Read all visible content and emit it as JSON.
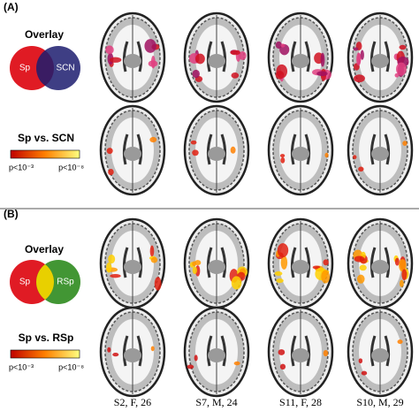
{
  "panels": [
    {
      "label": "(A)",
      "overlay_title": "Overlay",
      "venn": [
        "Sp",
        "SCN"
      ],
      "contrast": "Sp vs. SCN",
      "colorbar": [
        "p<10⁻³",
        "p<10⁻⁸"
      ]
    },
    {
      "label": "(B)",
      "overlay_title": "Overlay",
      "venn": [
        "Sp",
        "RSp"
      ],
      "contrast": "Sp vs. RSp",
      "colorbar": [
        "p<10⁻³",
        "p<10⁻⁸"
      ]
    }
  ],
  "subjects": [
    "S2, F, 26",
    "S7, M, 24",
    "S11, F, 28",
    "S10, M, 29"
  ]
}
